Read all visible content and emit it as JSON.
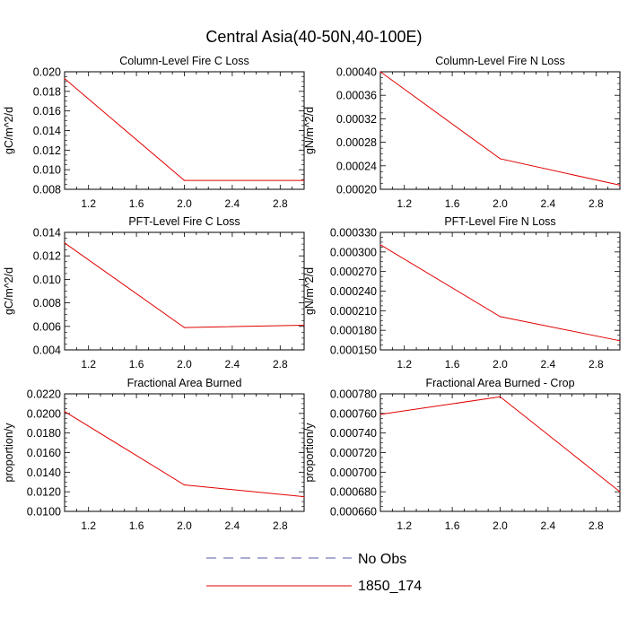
{
  "figure": {
    "title": "Central Asia(40-50N,40-100E)",
    "legend": [
      {
        "label": "No Obs",
        "style": "dashed",
        "color": "#5a5aa8"
      },
      {
        "label": "1850_174",
        "style": "solid",
        "color": "#e00000"
      }
    ]
  },
  "chart_data": [
    {
      "type": "line",
      "title": "Column-Level Fire C Loss",
      "xlabel": "",
      "ylabel": "gC/m^2/d",
      "xlim": [
        1.0,
        3.0
      ],
      "ylim": [
        0.008,
        0.02
      ],
      "xticks": [
        "1.2",
        "1.6",
        "2.0",
        "2.4",
        "2.8"
      ],
      "yticks": [
        "0.008",
        "0.010",
        "0.012",
        "0.014",
        "0.016",
        "0.018",
        "0.020"
      ],
      "series": [
        {
          "name": "1850_174",
          "color": "#e00000",
          "x": [
            1,
            2,
            3
          ],
          "values": [
            0.0193,
            0.0089,
            0.0089
          ]
        }
      ]
    },
    {
      "type": "line",
      "title": "Column-Level Fire N Loss",
      "xlabel": "",
      "ylabel": "gN/m^2/d",
      "xlim": [
        1.0,
        3.0
      ],
      "ylim": [
        0.0002,
        0.0004
      ],
      "xticks": [
        "1.2",
        "1.6",
        "2.0",
        "2.4",
        "2.8"
      ],
      "yticks": [
        "0.00020",
        "0.00024",
        "0.00028",
        "0.00032",
        "0.00036",
        "0.00040"
      ],
      "series": [
        {
          "name": "1850_174",
          "color": "#e00000",
          "x": [
            1,
            2,
            3
          ],
          "values": [
            0.0004,
            0.000252,
            0.000207
          ]
        }
      ]
    },
    {
      "type": "line",
      "title": "PFT-Level Fire C Loss",
      "xlabel": "",
      "ylabel": "gC/m^2/d",
      "xlim": [
        1.0,
        3.0
      ],
      "ylim": [
        0.004,
        0.014
      ],
      "xticks": [
        "1.2",
        "1.6",
        "2.0",
        "2.4",
        "2.8"
      ],
      "yticks": [
        "0.004",
        "0.006",
        "0.008",
        "0.010",
        "0.012",
        "0.014"
      ],
      "series": [
        {
          "name": "1850_174",
          "color": "#e00000",
          "x": [
            1,
            2,
            3
          ],
          "values": [
            0.0131,
            0.0059,
            0.0061
          ]
        }
      ]
    },
    {
      "type": "line",
      "title": "PFT-Level Fire N Loss",
      "xlabel": "",
      "ylabel": "gN/m^2/d",
      "xlim": [
        1.0,
        3.0
      ],
      "ylim": [
        0.00015,
        0.00033
      ],
      "xticks": [
        "1.2",
        "1.6",
        "2.0",
        "2.4",
        "2.8"
      ],
      "yticks": [
        "0.000150",
        "0.000180",
        "0.000210",
        "0.000240",
        "0.000270",
        "0.000300",
        "0.000330"
      ],
      "series": [
        {
          "name": "1850_174",
          "color": "#e00000",
          "x": [
            1,
            2,
            3
          ],
          "values": [
            0.000311,
            0.000201,
            0.000164
          ]
        }
      ]
    },
    {
      "type": "line",
      "title": "Fractional Area Burned",
      "xlabel": "",
      "ylabel": "proportion/y",
      "xlim": [
        1.0,
        3.0
      ],
      "ylim": [
        0.01,
        0.022
      ],
      "xticks": [
        "1.2",
        "1.6",
        "2.0",
        "2.4",
        "2.8"
      ],
      "yticks": [
        "0.0100",
        "0.0120",
        "0.0140",
        "0.0160",
        "0.0180",
        "0.0200",
        "0.0220"
      ],
      "series": [
        {
          "name": "1850_174",
          "color": "#e00000",
          "x": [
            1,
            2,
            3
          ],
          "values": [
            0.0202,
            0.0127,
            0.0115
          ]
        }
      ]
    },
    {
      "type": "line",
      "title": "Fractional Area Burned - Crop",
      "xlabel": "",
      "ylabel": "proportion/y",
      "xlim": [
        1.0,
        3.0
      ],
      "ylim": [
        0.00066,
        0.00078
      ],
      "xticks": [
        "1.2",
        "1.6",
        "2.0",
        "2.4",
        "2.8"
      ],
      "yticks": [
        "0.000660",
        "0.000680",
        "0.000700",
        "0.000720",
        "0.000740",
        "0.000760",
        "0.000780"
      ],
      "series": [
        {
          "name": "1850_174",
          "color": "#e00000",
          "x": [
            1,
            2,
            3
          ],
          "values": [
            0.000759,
            0.000777,
            0.00068
          ]
        }
      ]
    }
  ]
}
